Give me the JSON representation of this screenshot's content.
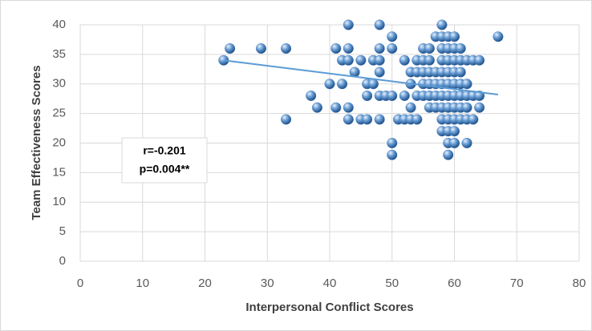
{
  "chart_data": {
    "type": "scatter",
    "x_label": "Interpersonal Conflict Scores",
    "y_label": "Team Effectiveness Scores",
    "annotations": [
      "r=-0.201",
      "p=0.004**"
    ],
    "xlim": [
      0,
      80
    ],
    "xticks": [
      0,
      10,
      20,
      30,
      40,
      50,
      60,
      70,
      80
    ],
    "ylim": [
      0,
      40
    ],
    "yticks": [
      0,
      5,
      10,
      15,
      20,
      25,
      30,
      35,
      40
    ],
    "grid": true,
    "color": "#4f81bd",
    "trend_color": "#5b9bd5",
    "x": [
      23,
      24,
      29,
      33,
      33,
      37,
      38,
      40,
      41,
      41,
      42,
      42,
      43,
      43,
      43,
      43,
      43,
      44,
      45,
      45,
      46,
      46,
      46,
      47,
      47,
      48,
      48,
      48,
      48,
      48,
      48,
      49,
      50,
      50,
      50,
      50,
      50,
      51,
      52,
      52,
      52,
      53,
      53,
      53,
      53,
      54,
      54,
      54,
      54,
      55,
      55,
      55,
      55,
      55,
      56,
      56,
      56,
      56,
      56,
      56,
      57,
      57,
      57,
      57,
      57,
      58,
      58,
      58,
      58,
      58,
      58,
      58,
      58,
      58,
      58,
      59,
      59,
      59,
      59,
      59,
      59,
      59,
      59,
      59,
      59,
      59,
      60,
      60,
      60,
      60,
      60,
      60,
      60,
      60,
      60,
      60,
      61,
      61,
      61,
      61,
      61,
      61,
      61,
      62,
      62,
      62,
      62,
      62,
      62,
      63,
      63,
      63,
      64,
      64,
      64,
      67
    ],
    "y": [
      34,
      36,
      36,
      36,
      24,
      28,
      26,
      30,
      36,
      26,
      34,
      30,
      40,
      36,
      34,
      26,
      24,
      32,
      34,
      24,
      24,
      30,
      28,
      34,
      30,
      40,
      36,
      34,
      32,
      28,
      24,
      28,
      38,
      36,
      28,
      20,
      18,
      24,
      34,
      28,
      24,
      32,
      30,
      26,
      24,
      34,
      32,
      28,
      24,
      36,
      34,
      32,
      30,
      28,
      36,
      34,
      32,
      30,
      28,
      26,
      38,
      32,
      30,
      28,
      26,
      40,
      38,
      36,
      34,
      32,
      30,
      28,
      26,
      24,
      22,
      38,
      36,
      34,
      32,
      30,
      28,
      26,
      24,
      22,
      20,
      18,
      38,
      36,
      34,
      32,
      30,
      28,
      26,
      24,
      22,
      20,
      36,
      34,
      32,
      30,
      28,
      26,
      24,
      34,
      30,
      28,
      26,
      24,
      20,
      34,
      28,
      24,
      34,
      28,
      26,
      38
    ],
    "trendline": {
      "x": [
        23,
        67
      ],
      "y": [
        34,
        28.2
      ]
    }
  }
}
